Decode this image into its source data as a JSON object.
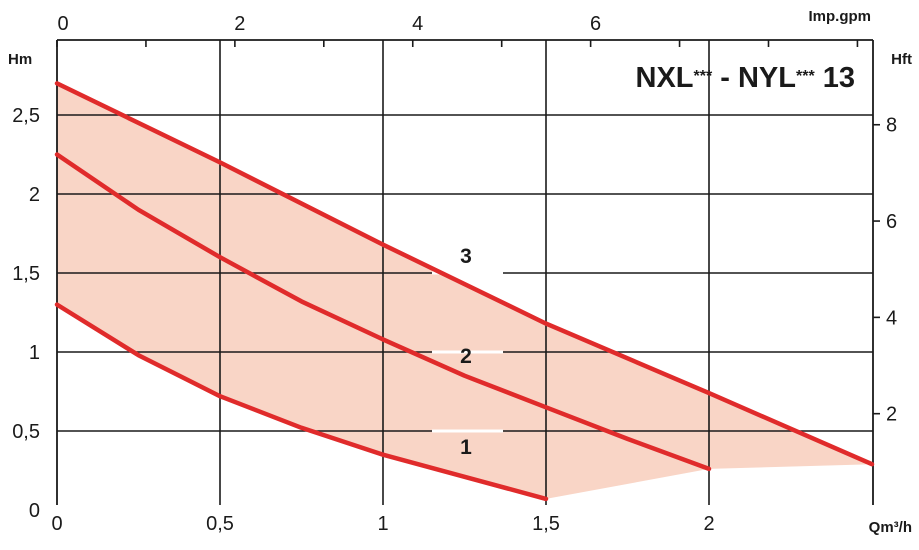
{
  "chart_data": {
    "type": "line",
    "title": "NXL*** - NYL*** 13",
    "title_parts": [
      "NXL",
      "***",
      " - NYL",
      "***",
      " 13"
    ],
    "xlabel": "Qm³/h",
    "ylabel": "Hm",
    "x2label": "Imp.gpm",
    "y2label": "Hft",
    "xlim": [
      0,
      2.5
    ],
    "ylim": [
      0,
      2.85
    ],
    "x_ticks": [
      0,
      0.5,
      1,
      1.5,
      2
    ],
    "x_tick_labels": [
      "0",
      "0,5",
      "1",
      "1,5",
      "2"
    ],
    "y_ticks": [
      0,
      0.5,
      1,
      1.5,
      2,
      2.5
    ],
    "y_tick_labels": [
      "0",
      "0,5",
      "1",
      "1,5",
      "2",
      "2,5"
    ],
    "x2_ticks": [
      0,
      2,
      4,
      6
    ],
    "x2_tick_labels": [
      "0",
      "2",
      "4",
      "6"
    ],
    "x2_minor_ticks": [
      1,
      3,
      5,
      7,
      8,
      9
    ],
    "y2_ticks": [
      2,
      4,
      6,
      8
    ],
    "y2_tick_labels": [
      "2",
      "4",
      "6",
      "8"
    ],
    "series": [
      {
        "name": "1",
        "x": [
          0,
          0.25,
          0.5,
          0.75,
          1.0,
          1.25,
          1.5
        ],
        "y": [
          1.3,
          0.98,
          0.72,
          0.52,
          0.35,
          0.21,
          0.07
        ]
      },
      {
        "name": "2",
        "x": [
          0,
          0.25,
          0.5,
          0.75,
          1.0,
          1.25,
          1.5,
          1.75,
          2.0
        ],
        "y": [
          2.25,
          1.9,
          1.6,
          1.32,
          1.08,
          0.85,
          0.65,
          0.45,
          0.26
        ]
      },
      {
        "name": "3",
        "x": [
          0,
          0.5,
          1.0,
          1.5,
          2.0,
          2.5
        ],
        "y": [
          2.7,
          2.2,
          1.68,
          1.18,
          0.74,
          0.29
        ]
      }
    ],
    "colors": {
      "curve": "#e02b2b",
      "fill": "#f9d5c6",
      "grid": "#1a1a1a"
    },
    "grid": true
  }
}
